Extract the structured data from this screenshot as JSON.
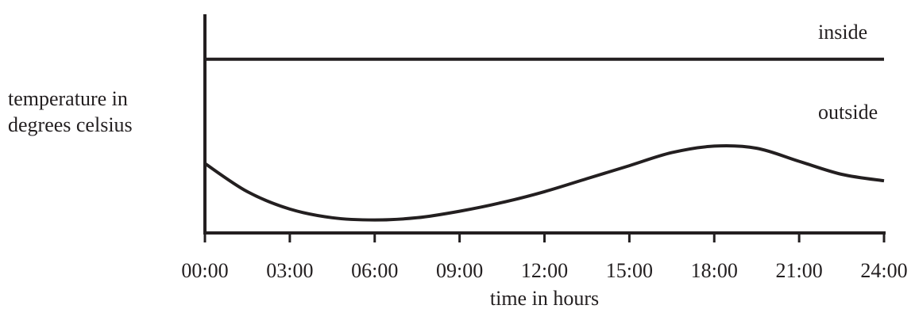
{
  "chart_data": {
    "type": "line",
    "title": "",
    "xlabel": "time in hours",
    "ylabel_lines": [
      "temperature in",
      "degrees celsius"
    ],
    "x_ticks": [
      "00:00",
      "03:00",
      "06:00",
      "09:00",
      "12:00",
      "15:00",
      "18:00",
      "21:00",
      "24:00"
    ],
    "xlim": [
      0,
      24
    ],
    "ylim": [
      0,
      100
    ],
    "y_ticks_shown": false,
    "grid": false,
    "legend": "none",
    "series": [
      {
        "name": "inside",
        "x": [
          0,
          3,
          6,
          9,
          12,
          15,
          18,
          21,
          24
        ],
        "y": [
          80,
          80,
          80,
          80,
          80,
          80,
          80,
          80,
          80
        ]
      },
      {
        "name": "outside",
        "x": [
          0,
          1.5,
          3,
          4.5,
          6,
          7.5,
          9,
          10.5,
          12,
          13.5,
          15,
          16.5,
          18,
          19.5,
          21,
          22.5,
          24
        ],
        "y": [
          32,
          19,
          11,
          7,
          6,
          7,
          10,
          14,
          19,
          25,
          31,
          37,
          40,
          39,
          33,
          27,
          24
        ]
      }
    ],
    "line_color": "#231f20"
  }
}
